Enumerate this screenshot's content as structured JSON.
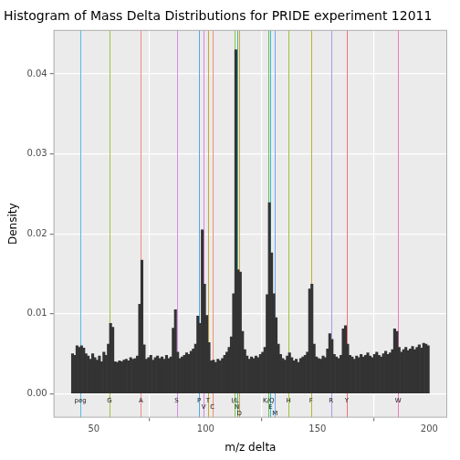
{
  "chart_data": {
    "type": "histogram",
    "title": "Histogram of Mass Delta Distributions for PRIDE experiment 12011",
    "x_label": "m/z delta",
    "y_label": "Density",
    "bins": [
      40,
      41,
      42,
      43,
      44,
      45,
      46,
      47,
      48,
      49,
      50,
      51,
      52,
      53,
      54,
      55,
      56,
      57,
      58,
      59,
      60,
      61,
      62,
      63,
      64,
      65,
      66,
      67,
      68,
      69,
      70,
      71,
      72,
      73,
      74,
      75,
      76,
      77,
      78,
      79,
      80,
      81,
      82,
      83,
      84,
      85,
      86,
      87,
      88,
      89,
      90,
      91,
      92,
      93,
      94,
      95,
      96,
      97,
      98,
      99,
      100,
      101,
      102,
      103,
      104,
      105,
      106,
      107,
      108,
      109,
      110,
      111,
      112,
      113,
      114,
      115,
      116,
      117,
      118,
      119,
      120,
      121,
      122,
      123,
      124,
      125,
      126,
      127,
      128,
      129,
      130,
      131,
      132,
      133,
      134,
      135,
      136,
      137,
      138,
      139,
      140,
      141,
      142,
      143,
      144,
      145,
      146,
      147,
      148,
      149,
      150,
      151,
      152,
      153,
      154,
      155,
      156,
      157,
      158,
      159,
      160,
      161,
      162,
      163,
      164,
      165,
      166,
      167,
      168,
      169,
      170,
      171,
      172,
      173,
      174,
      175,
      176,
      177,
      178,
      179,
      180,
      181,
      182,
      183,
      184,
      185,
      186,
      187,
      188,
      189,
      190,
      191,
      192,
      193,
      194,
      195,
      196,
      197,
      198,
      199,
      200
    ],
    "values": [
      0.005,
      0.0048,
      0.006,
      0.0058,
      0.006,
      0.0057,
      0.005,
      0.0047,
      0.0043,
      0.005,
      0.0045,
      0.0042,
      0.0047,
      0.004,
      0.0052,
      0.0048,
      0.0062,
      0.0088,
      0.0083,
      0.004,
      0.0039,
      0.0041,
      0.004,
      0.0042,
      0.0043,
      0.0041,
      0.0045,
      0.0043,
      0.0044,
      0.0047,
      0.0112,
      0.0167,
      0.0061,
      0.0043,
      0.0045,
      0.0048,
      0.0042,
      0.0045,
      0.0047,
      0.0044,
      0.0046,
      0.0043,
      0.0048,
      0.0044,
      0.0046,
      0.0082,
      0.0105,
      0.0052,
      0.0044,
      0.0046,
      0.0048,
      0.0051,
      0.0049,
      0.0053,
      0.0056,
      0.0062,
      0.0097,
      0.0088,
      0.0205,
      0.0137,
      0.0098,
      0.0064,
      0.0041,
      0.0042,
      0.0039,
      0.0043,
      0.0041,
      0.0044,
      0.0048,
      0.0052,
      0.0058,
      0.0071,
      0.0125,
      0.043,
      0.0155,
      0.0152,
      0.0078,
      0.0055,
      0.0047,
      0.0043,
      0.0046,
      0.0044,
      0.0047,
      0.0045,
      0.0049,
      0.0052,
      0.0058,
      0.0124,
      0.0239,
      0.0176,
      0.0125,
      0.0095,
      0.0062,
      0.0049,
      0.0044,
      0.0042,
      0.0047,
      0.0051,
      0.0045,
      0.0041,
      0.0043,
      0.0039,
      0.0044,
      0.0046,
      0.0048,
      0.0052,
      0.0131,
      0.0137,
      0.0062,
      0.0046,
      0.0044,
      0.0043,
      0.0047,
      0.0045,
      0.0056,
      0.0075,
      0.0068,
      0.0049,
      0.0046,
      0.0044,
      0.0048,
      0.0081,
      0.0085,
      0.0062,
      0.0048,
      0.0046,
      0.0043,
      0.0047,
      0.0045,
      0.0049,
      0.0046,
      0.0048,
      0.0051,
      0.0047,
      0.0045,
      0.0049,
      0.0052,
      0.0048,
      0.0046,
      0.005,
      0.0053,
      0.0049,
      0.0051,
      0.0055,
      0.0081,
      0.0078,
      0.0058,
      0.0052,
      0.0055,
      0.0058,
      0.0054,
      0.0056,
      0.0059,
      0.0055,
      0.0058,
      0.0061,
      0.0057,
      0.0063,
      0.0062,
      0.006
    ],
    "color": "#333333",
    "xlim": [
      32,
      208
    ],
    "xticks": [
      50,
      100,
      150,
      200
    ],
    "ylim": [
      -0.003,
      0.0455
    ],
    "yticks": [
      {
        "value": 0,
        "label": "0.00"
      },
      0.01,
      0.02,
      0.03,
      0.04
    ],
    "grid": true,
    "annotations": [
      {
        "label": "peg",
        "x": 44.03,
        "color": "#5bbce4"
      },
      {
        "label": "G",
        "x": 57.02,
        "color": "#a3c23c"
      },
      {
        "label": "A",
        "x": 71.04,
        "color": "#f08a84"
      },
      {
        "label": "S",
        "x": 87.03,
        "color": "#d58ce8"
      },
      {
        "label": "P",
        "x": 97.05,
        "color": "#4fa8e8"
      },
      {
        "label": "V",
        "x": 99.07,
        "color": "#e67fd8"
      },
      {
        "label": "T",
        "x": 101.05,
        "color": "#c6a832"
      },
      {
        "label": "C",
        "x": 103.01,
        "color": "#f38b7c"
      },
      {
        "label": "I/L",
        "x": 113.08,
        "color": "#8fbf3e"
      },
      {
        "label": "N",
        "x": 114.04,
        "color": "#33c0a8"
      },
      {
        "label": "D",
        "x": 115.03,
        "color": "#e2a030"
      },
      {
        "label": "K/Q",
        "x": 128.09,
        "color": "#60c060"
      },
      {
        "label": "E",
        "x": 129.04,
        "color": "#3db8c8"
      },
      {
        "label": "M",
        "x": 131.04,
        "color": "#6aa8f0"
      },
      {
        "label": "H",
        "x": 137.06,
        "color": "#9fc23a"
      },
      {
        "label": "F",
        "x": 147.07,
        "color": "#c0b030"
      },
      {
        "label": "R",
        "x": 156.1,
        "color": "#a898f0"
      },
      {
        "label": "Y",
        "x": 163.06,
        "color": "#f0707a"
      },
      {
        "label": "W",
        "x": 186.08,
        "color": "#f07ab8"
      }
    ]
  }
}
